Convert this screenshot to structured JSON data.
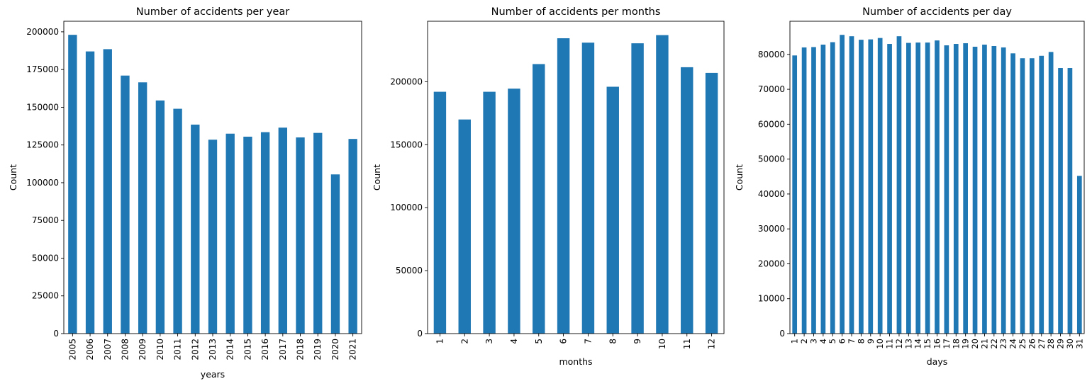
{
  "bar_color": "#1f77b4",
  "chart_data": [
    {
      "type": "bar",
      "title": "Number of accidents per year",
      "xlabel": "years",
      "ylabel": "Count",
      "categories": [
        "2005",
        "2006",
        "2007",
        "2008",
        "2009",
        "2010",
        "2011",
        "2012",
        "2013",
        "2014",
        "2015",
        "2016",
        "2017",
        "2018",
        "2019",
        "2020",
        "2021"
      ],
      "values": [
        198000,
        187000,
        188500,
        171000,
        166500,
        154500,
        149000,
        138500,
        128500,
        132500,
        130500,
        133500,
        136500,
        130000,
        133000,
        105500,
        129000
      ],
      "ylim": [
        0,
        207000
      ],
      "yticks": [
        0,
        25000,
        50000,
        75000,
        100000,
        125000,
        150000,
        175000,
        200000
      ],
      "grid": false,
      "legend": false
    },
    {
      "type": "bar",
      "title": "Number of accidents per months",
      "xlabel": "months",
      "ylabel": "Count",
      "categories": [
        "1",
        "2",
        "3",
        "4",
        "5",
        "6",
        "7",
        "8",
        "9",
        "10",
        "11",
        "12"
      ],
      "values": [
        192000,
        170000,
        192000,
        194500,
        214000,
        234500,
        231000,
        196000,
        230500,
        237000,
        211500,
        207000
      ],
      "ylim": [
        0,
        248000
      ],
      "yticks": [
        0,
        50000,
        100000,
        150000,
        200000
      ],
      "grid": false,
      "legend": false
    },
    {
      "type": "bar",
      "title": "Number of accidents per day",
      "xlabel": "days",
      "ylabel": "Count",
      "categories": [
        "1",
        "2",
        "3",
        "4",
        "5",
        "6",
        "7",
        "8",
        "9",
        "10",
        "11",
        "12",
        "13",
        "14",
        "15",
        "16",
        "17",
        "18",
        "19",
        "20",
        "21",
        "22",
        "23",
        "24",
        "25",
        "26",
        "27",
        "28",
        "29",
        "30",
        "31"
      ],
      "values": [
        79700,
        82000,
        82100,
        82800,
        83500,
        85600,
        85200,
        84200,
        84300,
        84700,
        83000,
        85200,
        83300,
        83400,
        83400,
        84000,
        82600,
        83000,
        83200,
        82200,
        82800,
        82400,
        82000,
        80300,
        78900,
        78900,
        79600,
        80700,
        76100,
        76100,
        45200
      ],
      "ylim": [
        0,
        89500
      ],
      "yticks": [
        0,
        10000,
        20000,
        30000,
        40000,
        50000,
        60000,
        70000,
        80000
      ],
      "grid": false,
      "legend": false
    }
  ]
}
